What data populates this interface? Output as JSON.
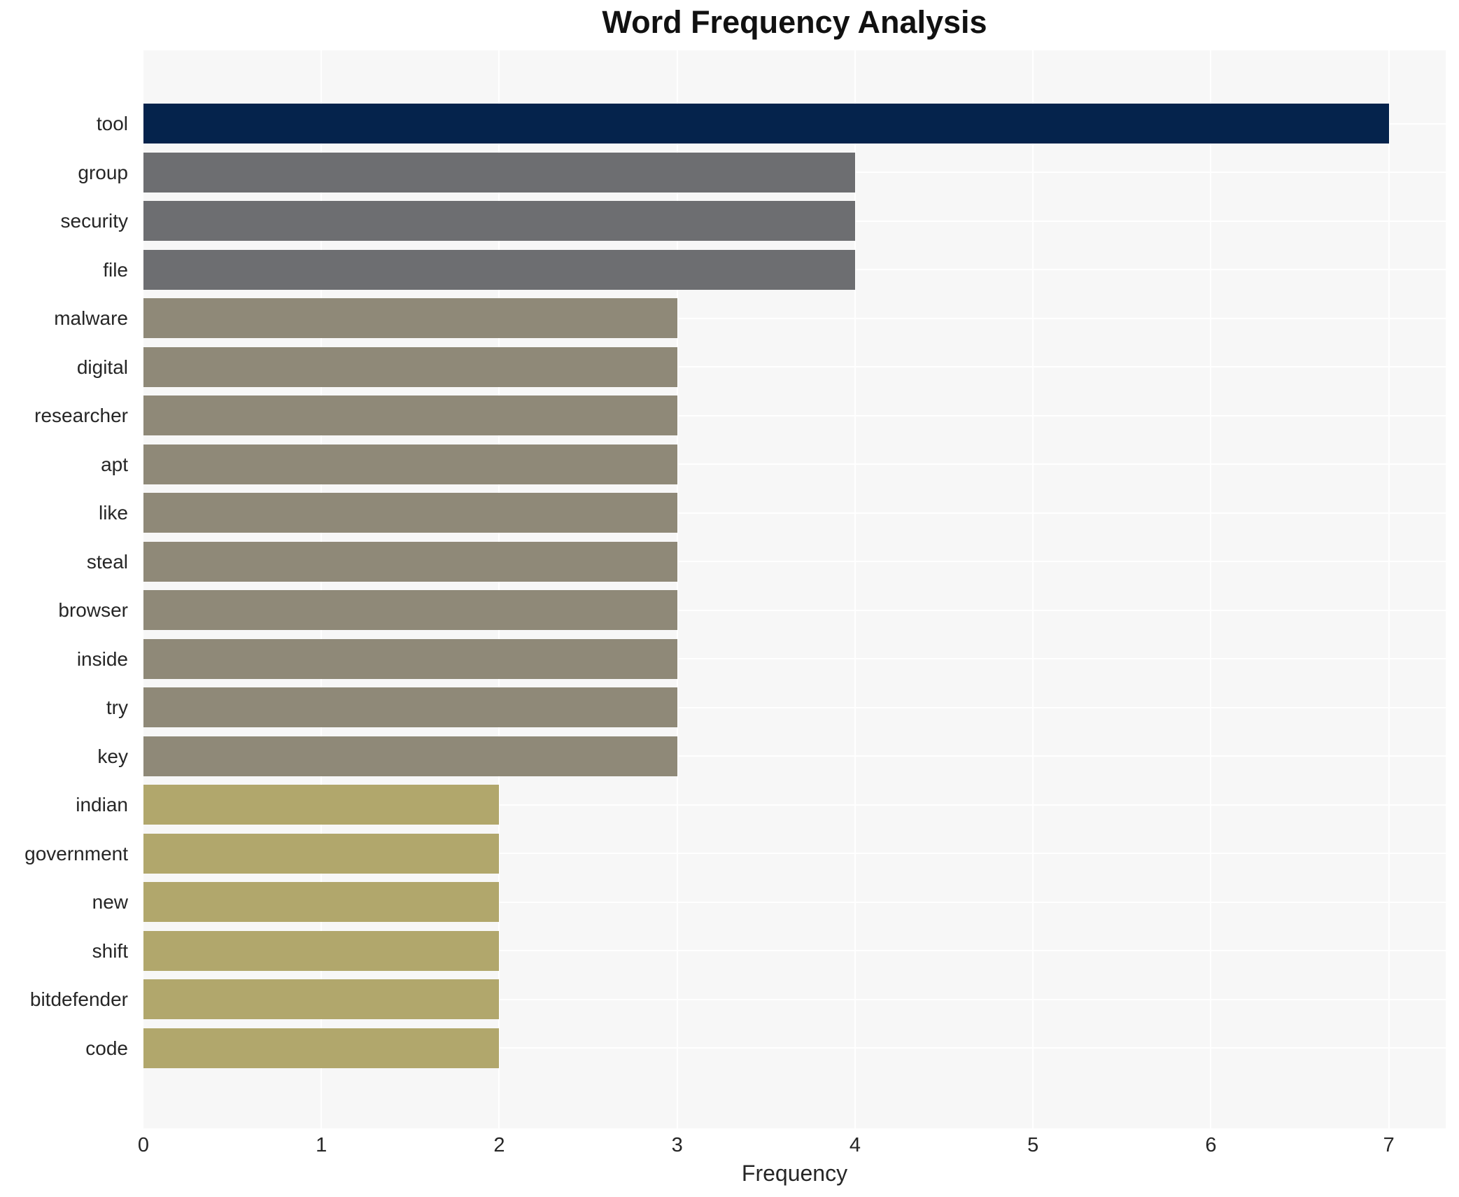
{
  "chart_data": {
    "type": "bar",
    "orientation": "horizontal",
    "title": "Word Frequency Analysis",
    "xlabel": "Frequency",
    "ylabel": "",
    "categories": [
      "tool",
      "group",
      "security",
      "file",
      "malware",
      "digital",
      "researcher",
      "apt",
      "like",
      "steal",
      "browser",
      "inside",
      "try",
      "key",
      "indian",
      "government",
      "new",
      "shift",
      "bitdefender",
      "code"
    ],
    "values": [
      7,
      4,
      4,
      4,
      3,
      3,
      3,
      3,
      3,
      3,
      3,
      3,
      3,
      3,
      2,
      2,
      2,
      2,
      2,
      2
    ],
    "bar_colors": [
      "#05234c",
      "#6d6e71",
      "#6d6e71",
      "#6d6e71",
      "#8f8978",
      "#8f8978",
      "#8f8978",
      "#8f8978",
      "#8f8978",
      "#8f8978",
      "#8f8978",
      "#8f8978",
      "#8f8978",
      "#8f8978",
      "#b1a76c",
      "#b1a76c",
      "#b1a76c",
      "#b1a76c",
      "#b1a76c",
      "#b1a76c"
    ],
    "xticks": [
      0,
      1,
      2,
      3,
      4,
      5,
      6,
      7
    ],
    "xlim": [
      0,
      7.32
    ],
    "grid": "white gridlines on light gray plot background",
    "legend": "none",
    "colors": {
      "plot_background": "#f7f7f7",
      "grid_line": "#ffffff",
      "highlight_bar": "#05234c",
      "tier2_bar": "#6d6e71",
      "tier3_bar": "#8f8978",
      "tier4_bar": "#b1a76c",
      "text": "#262626"
    }
  }
}
